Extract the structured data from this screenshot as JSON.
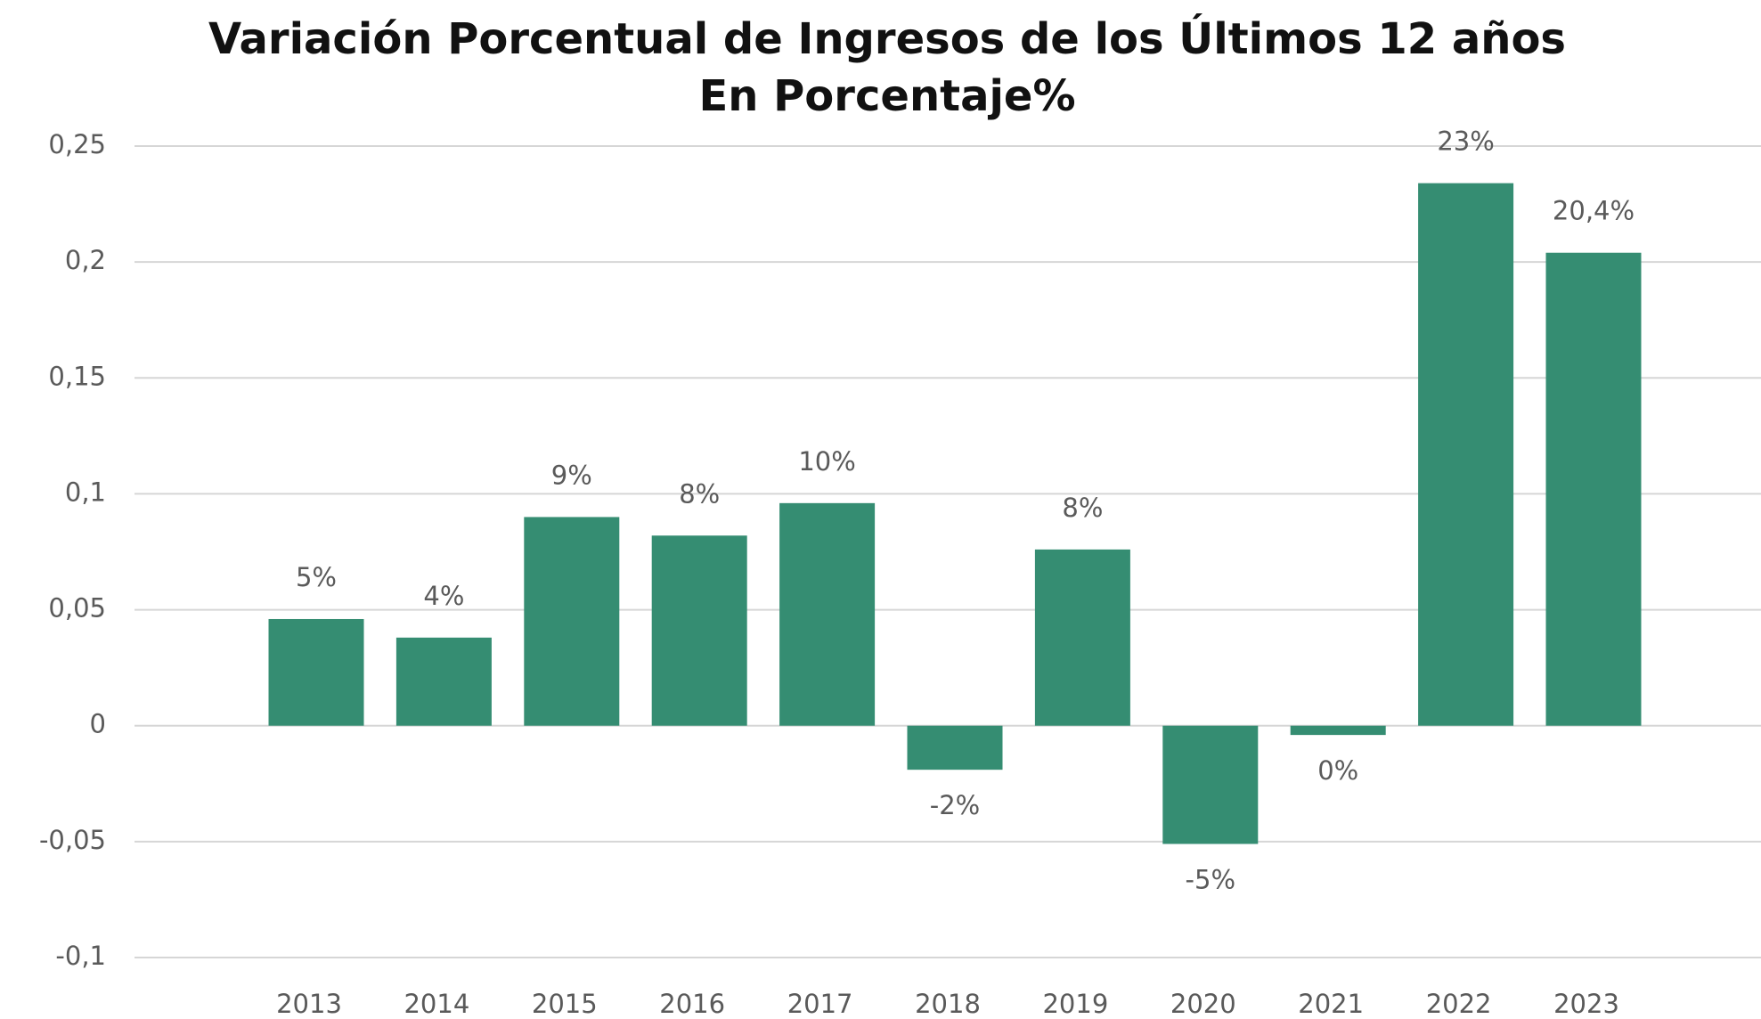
{
  "chart_data": {
    "type": "bar",
    "title": "Variación Porcentual de Ingresos de los Últimos 12 años",
    "subtitle": "En Porcentaje%",
    "categories": [
      "2013",
      "2014",
      "2015",
      "2016",
      "2017",
      "2018",
      "2019",
      "2020",
      "2021",
      "2022",
      "2023"
    ],
    "values": [
      0.046,
      0.038,
      0.09,
      0.082,
      0.096,
      -0.019,
      0.076,
      -0.051,
      -0.004,
      0.234,
      0.204
    ],
    "value_labels": [
      "5%",
      "4%",
      "9%",
      "8%",
      "10%",
      "-2%",
      "8%",
      "-5%",
      "0%",
      "23%",
      "20,4%"
    ],
    "color": "#358d72",
    "ylim": [
      -0.1,
      0.25
    ],
    "yticks": [
      {
        "value": -0.1,
        "label": "-0,1"
      },
      {
        "value": -0.05,
        "label": "-0,05"
      },
      0,
      {
        "value": 0.05,
        "label": "0,05"
      },
      {
        "value": 0.1,
        "label": "0,1"
      },
      {
        "value": 0.15,
        "label": "0,15"
      },
      {
        "value": 0.2,
        "label": "0,2"
      },
      {
        "value": 0.25,
        "label": "0,25"
      }
    ],
    "grid": true
  }
}
